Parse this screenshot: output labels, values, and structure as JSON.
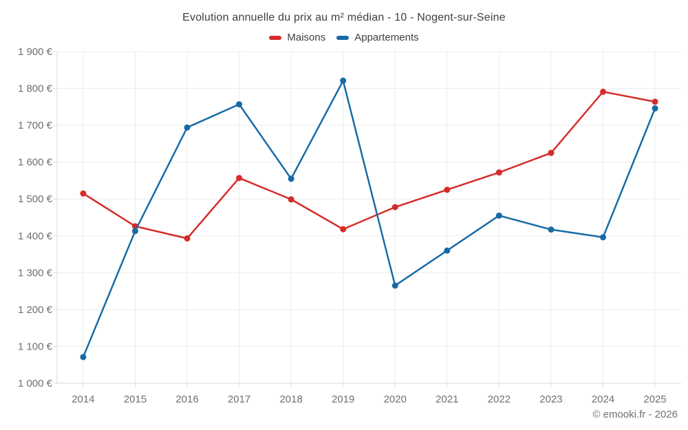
{
  "chart_data": {
    "type": "line",
    "title": "Evolution annuelle du prix au m² médian - 10 - Nogent-sur-Seine",
    "x": [
      2014,
      2015,
      2016,
      2017,
      2018,
      2019,
      2020,
      2021,
      2022,
      2023,
      2024,
      2025
    ],
    "series": [
      {
        "name": "Maisons",
        "color": "#d62b28",
        "values": [
          1515,
          1426,
          1393,
          1557,
          1499,
          1418,
          1478,
          1525,
          1572,
          1625,
          1791,
          1764
        ]
      },
      {
        "name": "Appartements",
        "color": "#176ba6",
        "values": [
          1071,
          1413,
          1694,
          1757,
          1555,
          1821,
          1265,
          1360,
          1455,
          1417,
          1396,
          1746
        ]
      }
    ],
    "ylim": [
      1000,
      1900
    ],
    "y_tick_step": 100,
    "y_tick_suffix": " €",
    "grid": true,
    "legend_position": "top",
    "attribution": "© emooki.fr - 2026"
  },
  "style_colors": {
    "gridline": "#ebebeb",
    "axis_line": "#d9d9d9",
    "axis_text": "#6f6f6f",
    "title_text": "#3e3e3e"
  }
}
